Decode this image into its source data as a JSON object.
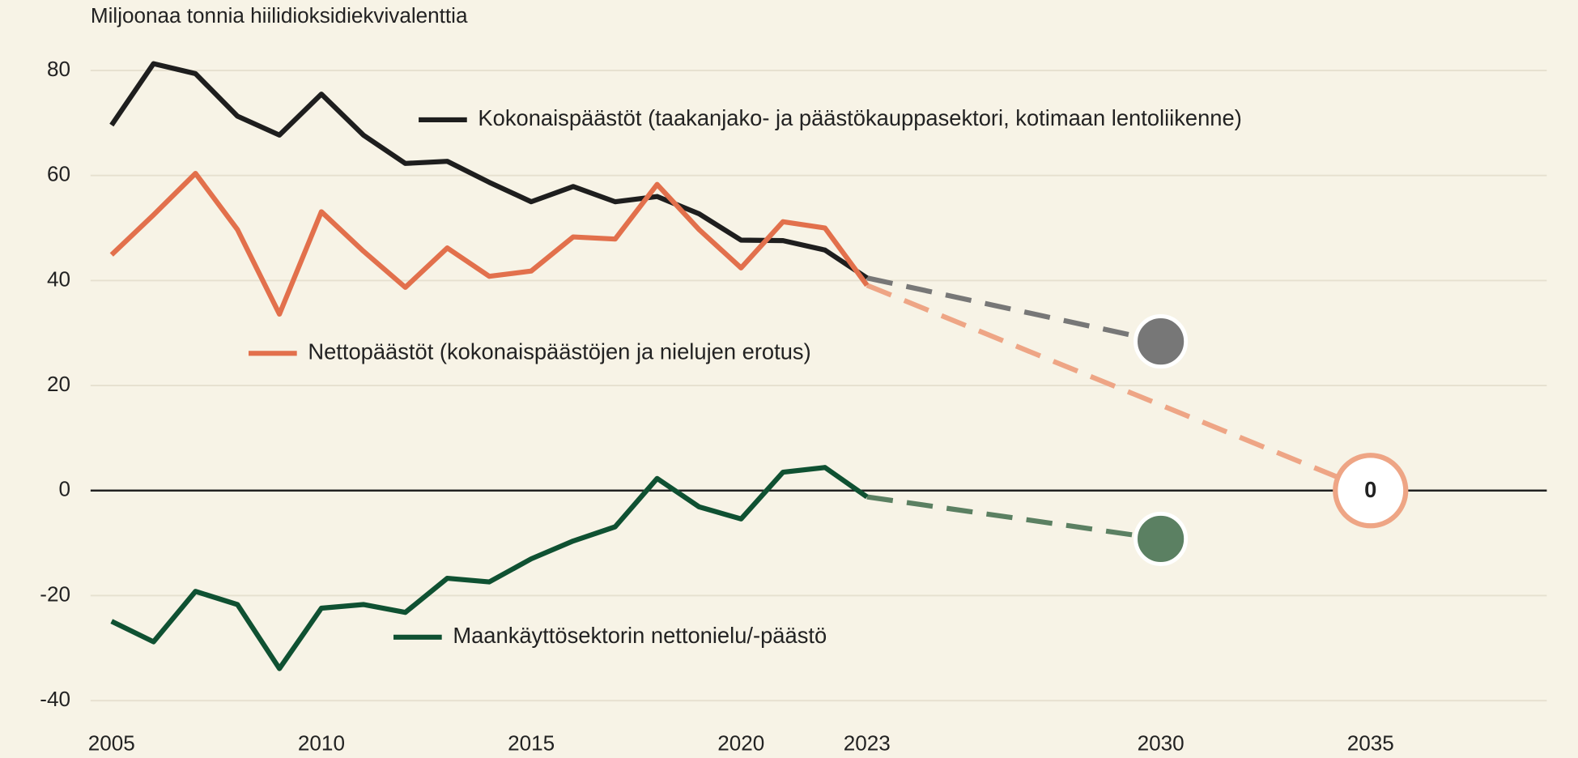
{
  "chart_data": {
    "type": "line",
    "title": "Miljoonaa tonnia hiilidioksidiekvivalenttia",
    "x": [
      2005,
      2006,
      2007,
      2008,
      2009,
      2010,
      2011,
      2012,
      2013,
      2014,
      2015,
      2016,
      2017,
      2018,
      2019,
      2020,
      2021,
      2022,
      2023
    ],
    "xlim": [
      2004.5,
      2039.2
    ],
    "xticks": [
      2005,
      2010,
      2015,
      2020,
      2023,
      2030,
      2035
    ],
    "ylim": [
      -40,
      80
    ],
    "yticks": [
      -40,
      -20,
      0,
      20,
      40,
      60,
      80
    ],
    "grid": true,
    "series": [
      {
        "name": "Kokonaispäästöt (taakanjako- ja päästökauppasektori, kotimaan lentoliikenne)",
        "color": "#1e1e1e",
        "target_color": "#777777",
        "values": [
          69.6,
          81.3,
          79.4,
          71.3,
          67.7,
          75.5,
          67.7,
          62.3,
          62.7,
          58.7,
          55,
          57.9,
          55,
          56,
          52.7,
          47.7,
          47.6,
          45.8,
          40.5
        ],
        "target": {
          "x": 2030,
          "value": 28.4
        }
      },
      {
        "name": "Nettopäästöt (kokonaispäästöjen ja nielujen erotus)",
        "color": "#e2704c",
        "target_color": "#eea585",
        "values": [
          44.9,
          52.5,
          60.4,
          49.7,
          33.6,
          53.1,
          45.6,
          38.7,
          46.2,
          40.8,
          41.8,
          48.3,
          47.9,
          58.3,
          49.7,
          42.4,
          51.2,
          50,
          39.1
        ],
        "target": {
          "x": 2035,
          "value": 0
        }
      },
      {
        "name": "Maankäyttösektorin nettonielu/-päästö",
        "color": "#0f5132",
        "target_color": "#5b8062",
        "values": [
          -24.9,
          -28.8,
          -19.2,
          -21.7,
          -33.9,
          -22.4,
          -21.7,
          -23.2,
          -16.7,
          -17.4,
          -13,
          -9.6,
          -6.9,
          2.3,
          -3.1,
          -5.4,
          3.5,
          4.4,
          -1.2
        ],
        "target": {
          "x": 2030,
          "value": -9.2
        }
      }
    ]
  }
}
